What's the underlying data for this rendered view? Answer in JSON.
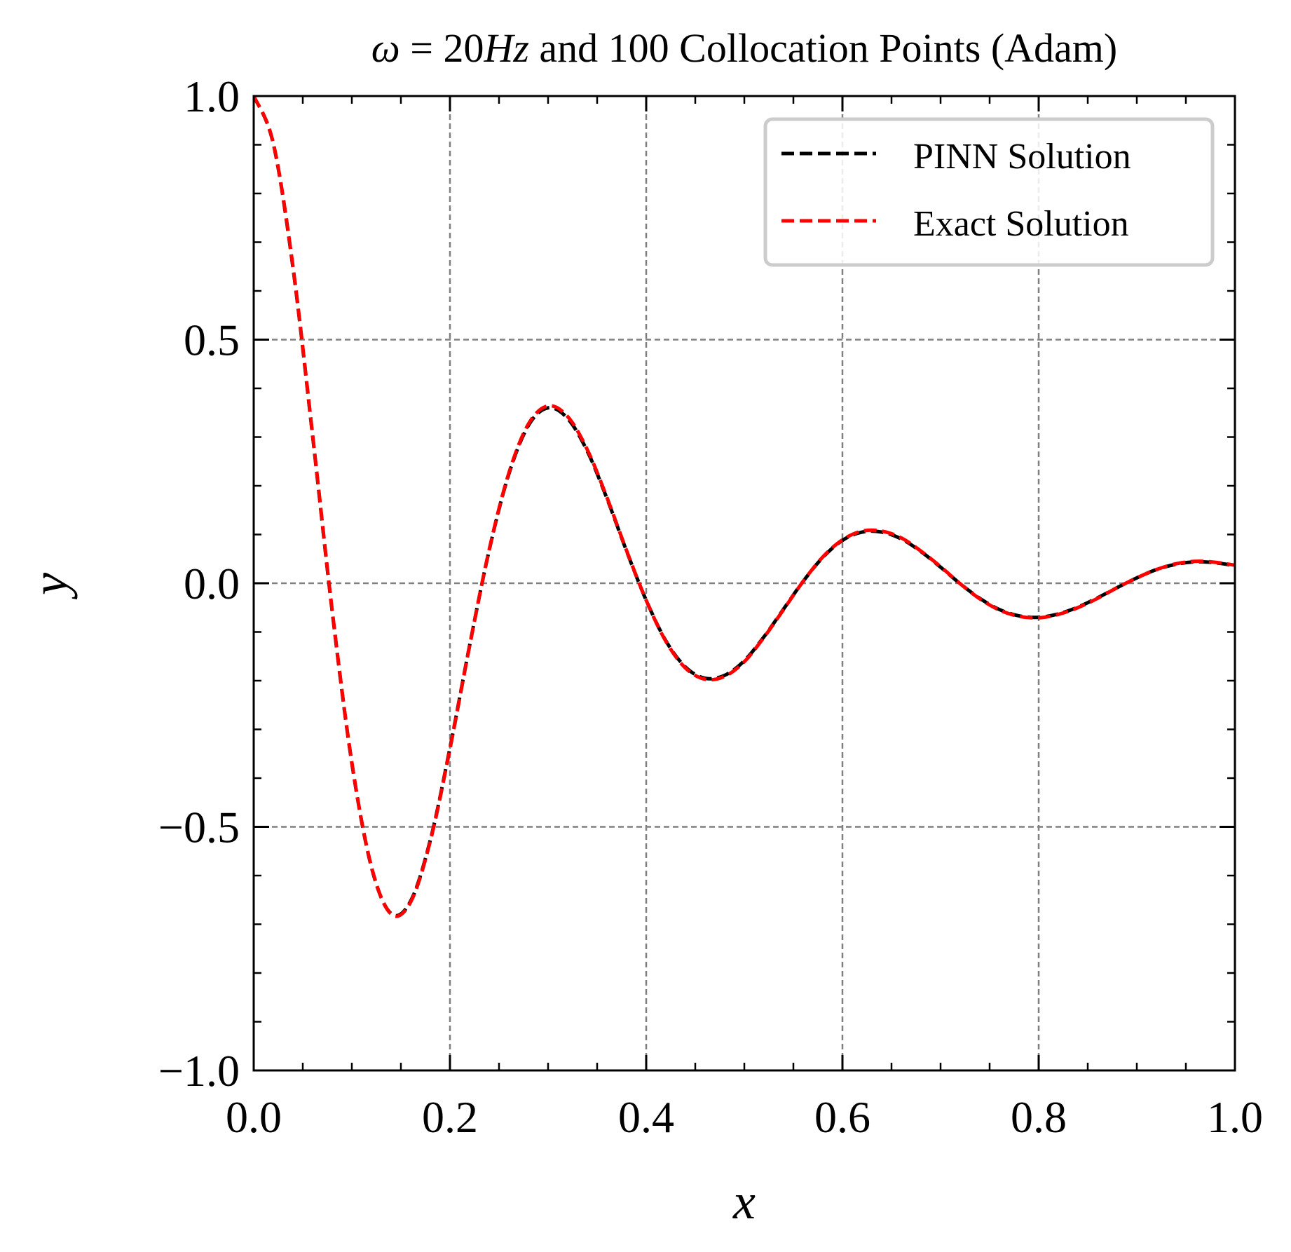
{
  "chart_data": {
    "type": "line",
    "title_prefix": "ω",
    "title_equals": " = ",
    "title_freq": "20",
    "title_unit": "Hz",
    "title_suffix": " and 100 Collocation Points (Adam)",
    "xlabel": "x",
    "ylabel": "y",
    "xlim": [
      0.0,
      1.0
    ],
    "ylim": [
      -1.0,
      1.0
    ],
    "x_ticks": [
      "0.0",
      "0.2",
      "0.4",
      "0.6",
      "0.8",
      "1.0"
    ],
    "y_ticks": [
      "−1.0",
      "−0.5",
      "0.0",
      "0.5",
      "1.0"
    ],
    "grid": true,
    "legend_position": "top-right",
    "series": [
      {
        "name": "PINN Solution",
        "color": "#000000",
        "style": "dashed",
        "x": [
          0.0,
          0.02,
          0.04,
          0.06,
          0.08,
          0.1,
          0.12,
          0.14,
          0.16,
          0.18,
          0.2,
          0.22,
          0.24,
          0.26,
          0.28,
          0.3,
          0.32,
          0.34,
          0.36,
          0.38,
          0.4,
          0.42,
          0.44,
          0.46,
          0.48,
          0.5,
          0.52,
          0.54,
          0.56,
          0.58,
          0.6,
          0.62,
          0.64,
          0.66,
          0.68,
          0.7,
          0.72,
          0.74,
          0.76,
          0.78,
          0.8,
          0.82,
          0.84,
          0.86,
          0.88,
          0.9,
          0.92,
          0.94,
          0.96,
          0.98,
          1.0
        ],
        "y": [
          1.0,
          0.902,
          0.648,
          0.303,
          -0.058,
          -0.369,
          -0.583,
          -0.678,
          -0.652,
          -0.527,
          -0.338,
          -0.128,
          0.068,
          0.224,
          0.324,
          0.36,
          0.338,
          0.271,
          0.174,
          0.066,
          -0.035,
          -0.118,
          -0.172,
          -0.195,
          -0.189,
          -0.159,
          -0.11,
          -0.053,
          0.004,
          0.053,
          0.088,
          0.105,
          0.105,
          0.091,
          0.065,
          0.033,
          -0.001,
          -0.031,
          -0.054,
          -0.067,
          -0.07,
          -0.063,
          -0.049,
          -0.03,
          -0.009,
          0.011,
          0.028,
          0.039,
          0.044,
          0.042,
          0.036
        ]
      },
      {
        "name": "Exact Solution",
        "color": "#ff0000",
        "style": "dashed",
        "x": [
          0.0,
          0.02,
          0.04,
          0.06,
          0.08,
          0.1,
          0.12,
          0.14,
          0.16,
          0.18,
          0.2,
          0.22,
          0.24,
          0.26,
          0.28,
          0.3,
          0.32,
          0.34,
          0.36,
          0.38,
          0.4,
          0.42,
          0.44,
          0.46,
          0.48,
          0.5,
          0.52,
          0.54,
          0.56,
          0.58,
          0.6,
          0.62,
          0.64,
          0.66,
          0.68,
          0.7,
          0.72,
          0.74,
          0.76,
          0.78,
          0.8,
          0.82,
          0.84,
          0.86,
          0.88,
          0.9,
          0.92,
          0.94,
          0.96,
          0.98,
          1.0
        ],
        "y": [
          1.0,
          0.903,
          0.65,
          0.305,
          -0.056,
          -0.368,
          -0.582,
          -0.679,
          -0.654,
          -0.529,
          -0.34,
          -0.129,
          0.069,
          0.226,
          0.327,
          0.364,
          0.342,
          0.274,
          0.176,
          0.067,
          -0.035,
          -0.119,
          -0.174,
          -0.197,
          -0.191,
          -0.161,
          -0.111,
          -0.054,
          0.004,
          0.054,
          0.089,
          0.107,
          0.107,
          0.093,
          0.066,
          0.034,
          -0.001,
          -0.032,
          -0.055,
          -0.068,
          -0.071,
          -0.064,
          -0.05,
          -0.031,
          -0.009,
          0.011,
          0.028,
          0.04,
          0.045,
          0.043,
          0.037
        ]
      }
    ]
  }
}
